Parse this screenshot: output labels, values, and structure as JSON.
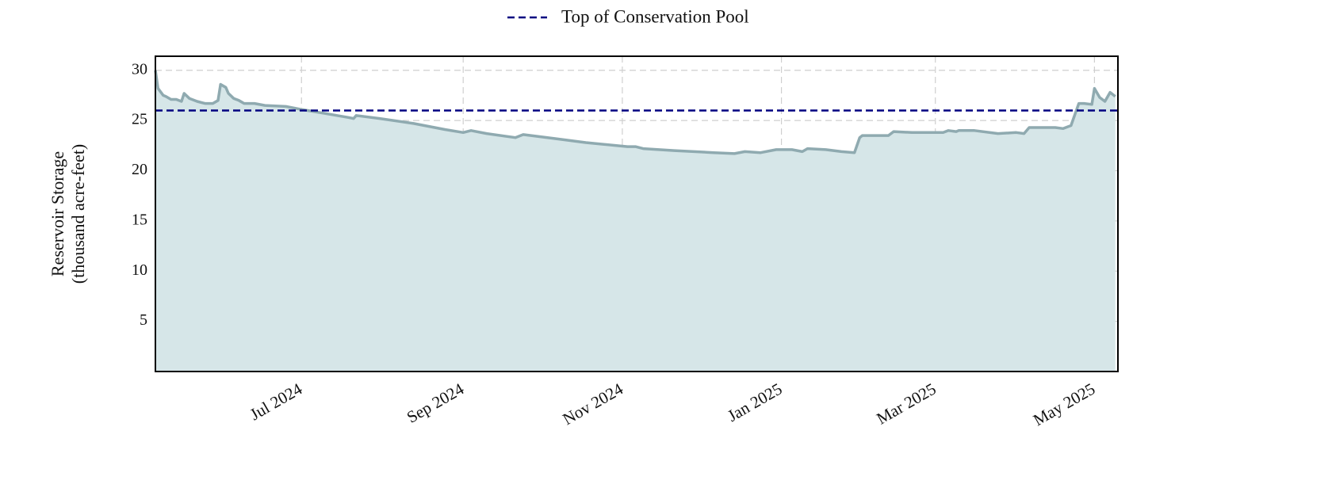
{
  "chart_data": {
    "type": "area",
    "ylabel": [
      "Reservoir Storage",
      "(thousand acre-feet)"
    ],
    "x": [
      "2024-05-06",
      "2024-05-07",
      "2024-05-09",
      "2024-05-10",
      "2024-05-12",
      "2024-05-14",
      "2024-05-16",
      "2024-05-17",
      "2024-05-19",
      "2024-05-22",
      "2024-05-25",
      "2024-05-28",
      "2024-05-30",
      "2024-05-31",
      "2024-06-02",
      "2024-06-03",
      "2024-06-05",
      "2024-06-07",
      "2024-06-09",
      "2024-06-13",
      "2024-06-17",
      "2024-06-25",
      "2024-07-01",
      "2024-07-10",
      "2024-07-19",
      "2024-07-21",
      "2024-07-22",
      "2024-07-31",
      "2024-08-13",
      "2024-08-25",
      "2024-09-01",
      "2024-09-04",
      "2024-09-10",
      "2024-09-21",
      "2024-09-24",
      "2024-10-06",
      "2024-10-18",
      "2024-11-03",
      "2024-11-06",
      "2024-11-09",
      "2024-11-21",
      "2024-12-06",
      "2024-12-14",
      "2024-12-18",
      "2024-12-24",
      "2024-12-30",
      "2025-01-05",
      "2025-01-09",
      "2025-01-11",
      "2025-01-18",
      "2025-01-24",
      "2025-01-29",
      "2025-01-31",
      "2025-02-01",
      "2025-02-08",
      "2025-02-11",
      "2025-02-13",
      "2025-02-20",
      "2025-03-04",
      "2025-03-06",
      "2025-03-09",
      "2025-03-10",
      "2025-03-16",
      "2025-03-25",
      "2025-04-01",
      "2025-04-04",
      "2025-04-06",
      "2025-04-16",
      "2025-04-19",
      "2025-04-22",
      "2025-04-25",
      "2025-04-27",
      "2025-04-30",
      "2025-05-01",
      "2025-05-03",
      "2025-05-05",
      "2025-05-07",
      "2025-05-09"
    ],
    "series": [
      {
        "color": "#8faab0",
        "fill": "#d6e6e8",
        "values": [
          30.0,
          28.2,
          27.5,
          27.4,
          27.1,
          27.1,
          26.9,
          27.7,
          27.2,
          26.9,
          26.7,
          26.7,
          27.0,
          28.6,
          28.3,
          27.7,
          27.2,
          27.0,
          26.7,
          26.7,
          26.5,
          26.4,
          26.1,
          25.7,
          25.3,
          25.2,
          25.5,
          25.2,
          24.7,
          24.1,
          23.8,
          24.0,
          23.7,
          23.3,
          23.6,
          23.2,
          22.8,
          22.4,
          22.4,
          22.2,
          22.0,
          21.8,
          21.7,
          21.9,
          21.8,
          22.1,
          22.1,
          21.9,
          22.2,
          22.1,
          21.9,
          21.8,
          23.3,
          23.5,
          23.5,
          23.5,
          23.9,
          23.8,
          23.8,
          24.0,
          23.9,
          24.0,
          24.0,
          23.7,
          23.8,
          23.7,
          24.3,
          24.3,
          24.2,
          24.5,
          26.7,
          26.7,
          26.6,
          28.2,
          27.3,
          26.9,
          27.8,
          27.4
        ]
      }
    ],
    "reference_lines": [
      {
        "name": "Top of Conservation Pool",
        "value": 26,
        "color": "#000080",
        "style": "dashed"
      }
    ],
    "xlim": [
      "2024-05-06",
      "2025-05-10"
    ],
    "xticks": [
      {
        "value": "2024-07-01",
        "label": "Jul 2024"
      },
      {
        "value": "2024-09-01",
        "label": "Sep 2024"
      },
      {
        "value": "2024-11-01",
        "label": "Nov 2024"
      },
      {
        "value": "2025-01-01",
        "label": "Jan 2025"
      },
      {
        "value": "2025-03-01",
        "label": "Mar 2025"
      },
      {
        "value": "2025-05-01",
        "label": "May 2025"
      }
    ],
    "ylim": [
      0,
      31.4
    ],
    "yticks": [
      5,
      10,
      15,
      20,
      25,
      30
    ],
    "grid": true,
    "legend": "top"
  }
}
